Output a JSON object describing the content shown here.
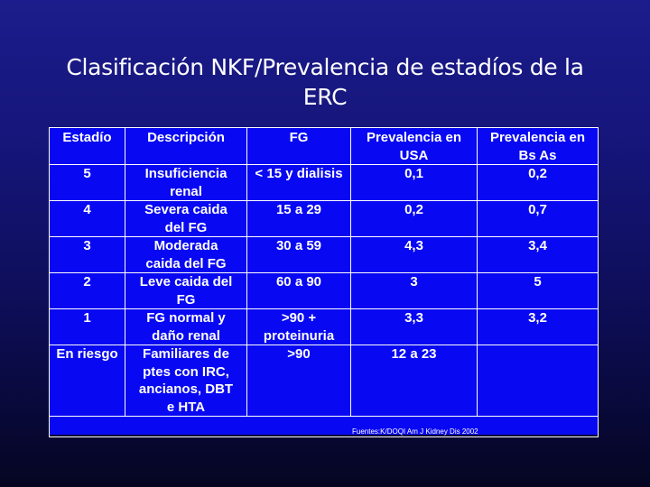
{
  "title": {
    "line1": "Clasificación NKF/Prevalencia de estadíos de la",
    "line2": "ERC"
  },
  "table": {
    "headers": [
      [
        "Estadío"
      ],
      [
        "Descripción"
      ],
      [
        "FG"
      ],
      [
        "Prevalencia en",
        "USA"
      ],
      [
        "Prevalencia en",
        "Bs As"
      ]
    ],
    "rows": [
      {
        "estadio": "5",
        "descripcion": [
          "Insuficiencia",
          "renal"
        ],
        "fg": [
          "< 15 y dialisis"
        ],
        "usa": "0,1",
        "bsas": "0,2"
      },
      {
        "estadio": "4",
        "descripcion": [
          "Severa caida",
          "del FG"
        ],
        "fg": [
          "15 a 29"
        ],
        "usa": "0,2",
        "bsas": "0,7"
      },
      {
        "estadio": "3",
        "descripcion": [
          "Moderada",
          "caida del FG"
        ],
        "fg": [
          "30 a 59"
        ],
        "usa": "4,3",
        "bsas": "3,4"
      },
      {
        "estadio": "2",
        "descripcion": [
          "Leve caida del",
          "FG"
        ],
        "fg": [
          "60 a 90"
        ],
        "usa": "3",
        "bsas": "5"
      },
      {
        "estadio": "1",
        "descripcion": [
          "FG normal y",
          "daño renal"
        ],
        "fg": [
          ">90 +",
          "proteinuria"
        ],
        "usa": "3,3",
        "bsas": "3,2"
      },
      {
        "estadio": "En riesgo",
        "descripcion": [
          "Familiares de",
          "ptes con IRC,",
          "ancianos, DBT",
          "e HTA"
        ],
        "fg": [
          ">90"
        ],
        "usa": "12 a 23",
        "bsas": ""
      }
    ],
    "source": "Fuentes:K/DOQI Am J Kidney Dis 2002"
  }
}
